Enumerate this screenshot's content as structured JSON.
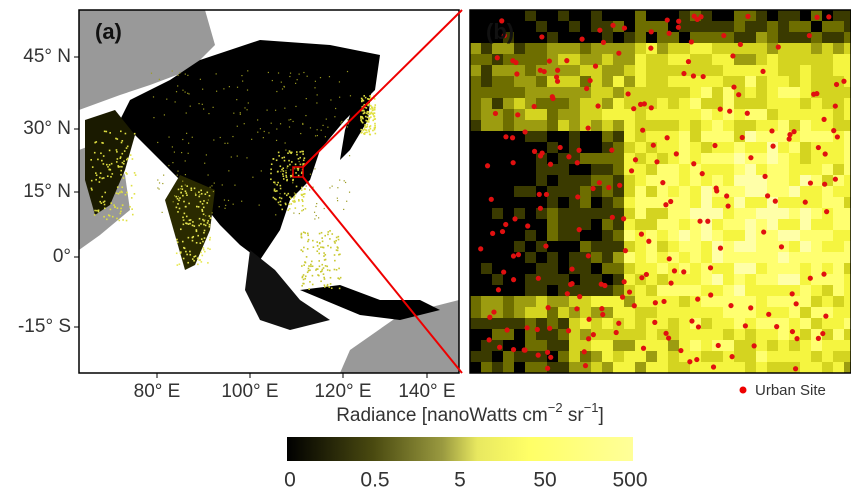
{
  "panels": [
    {
      "label": "(a)"
    },
    {
      "label": "(b)"
    }
  ],
  "map": {
    "lat_ticks": [
      "45° N",
      "30° N",
      "15° N",
      "0°",
      "-15° S"
    ],
    "lon_ticks": [
      "80° E",
      "100° E",
      "120° E",
      "140° E"
    ]
  },
  "colorbar": {
    "title": "Radiance [nanoWatts cm",
    "sup1": "−2",
    "mid": " sr",
    "sup2": "−1",
    "end": "]",
    "ticks": [
      0,
      0.5,
      5,
      50,
      500
    ]
  },
  "legend": {
    "label": "Urban Site"
  }
}
